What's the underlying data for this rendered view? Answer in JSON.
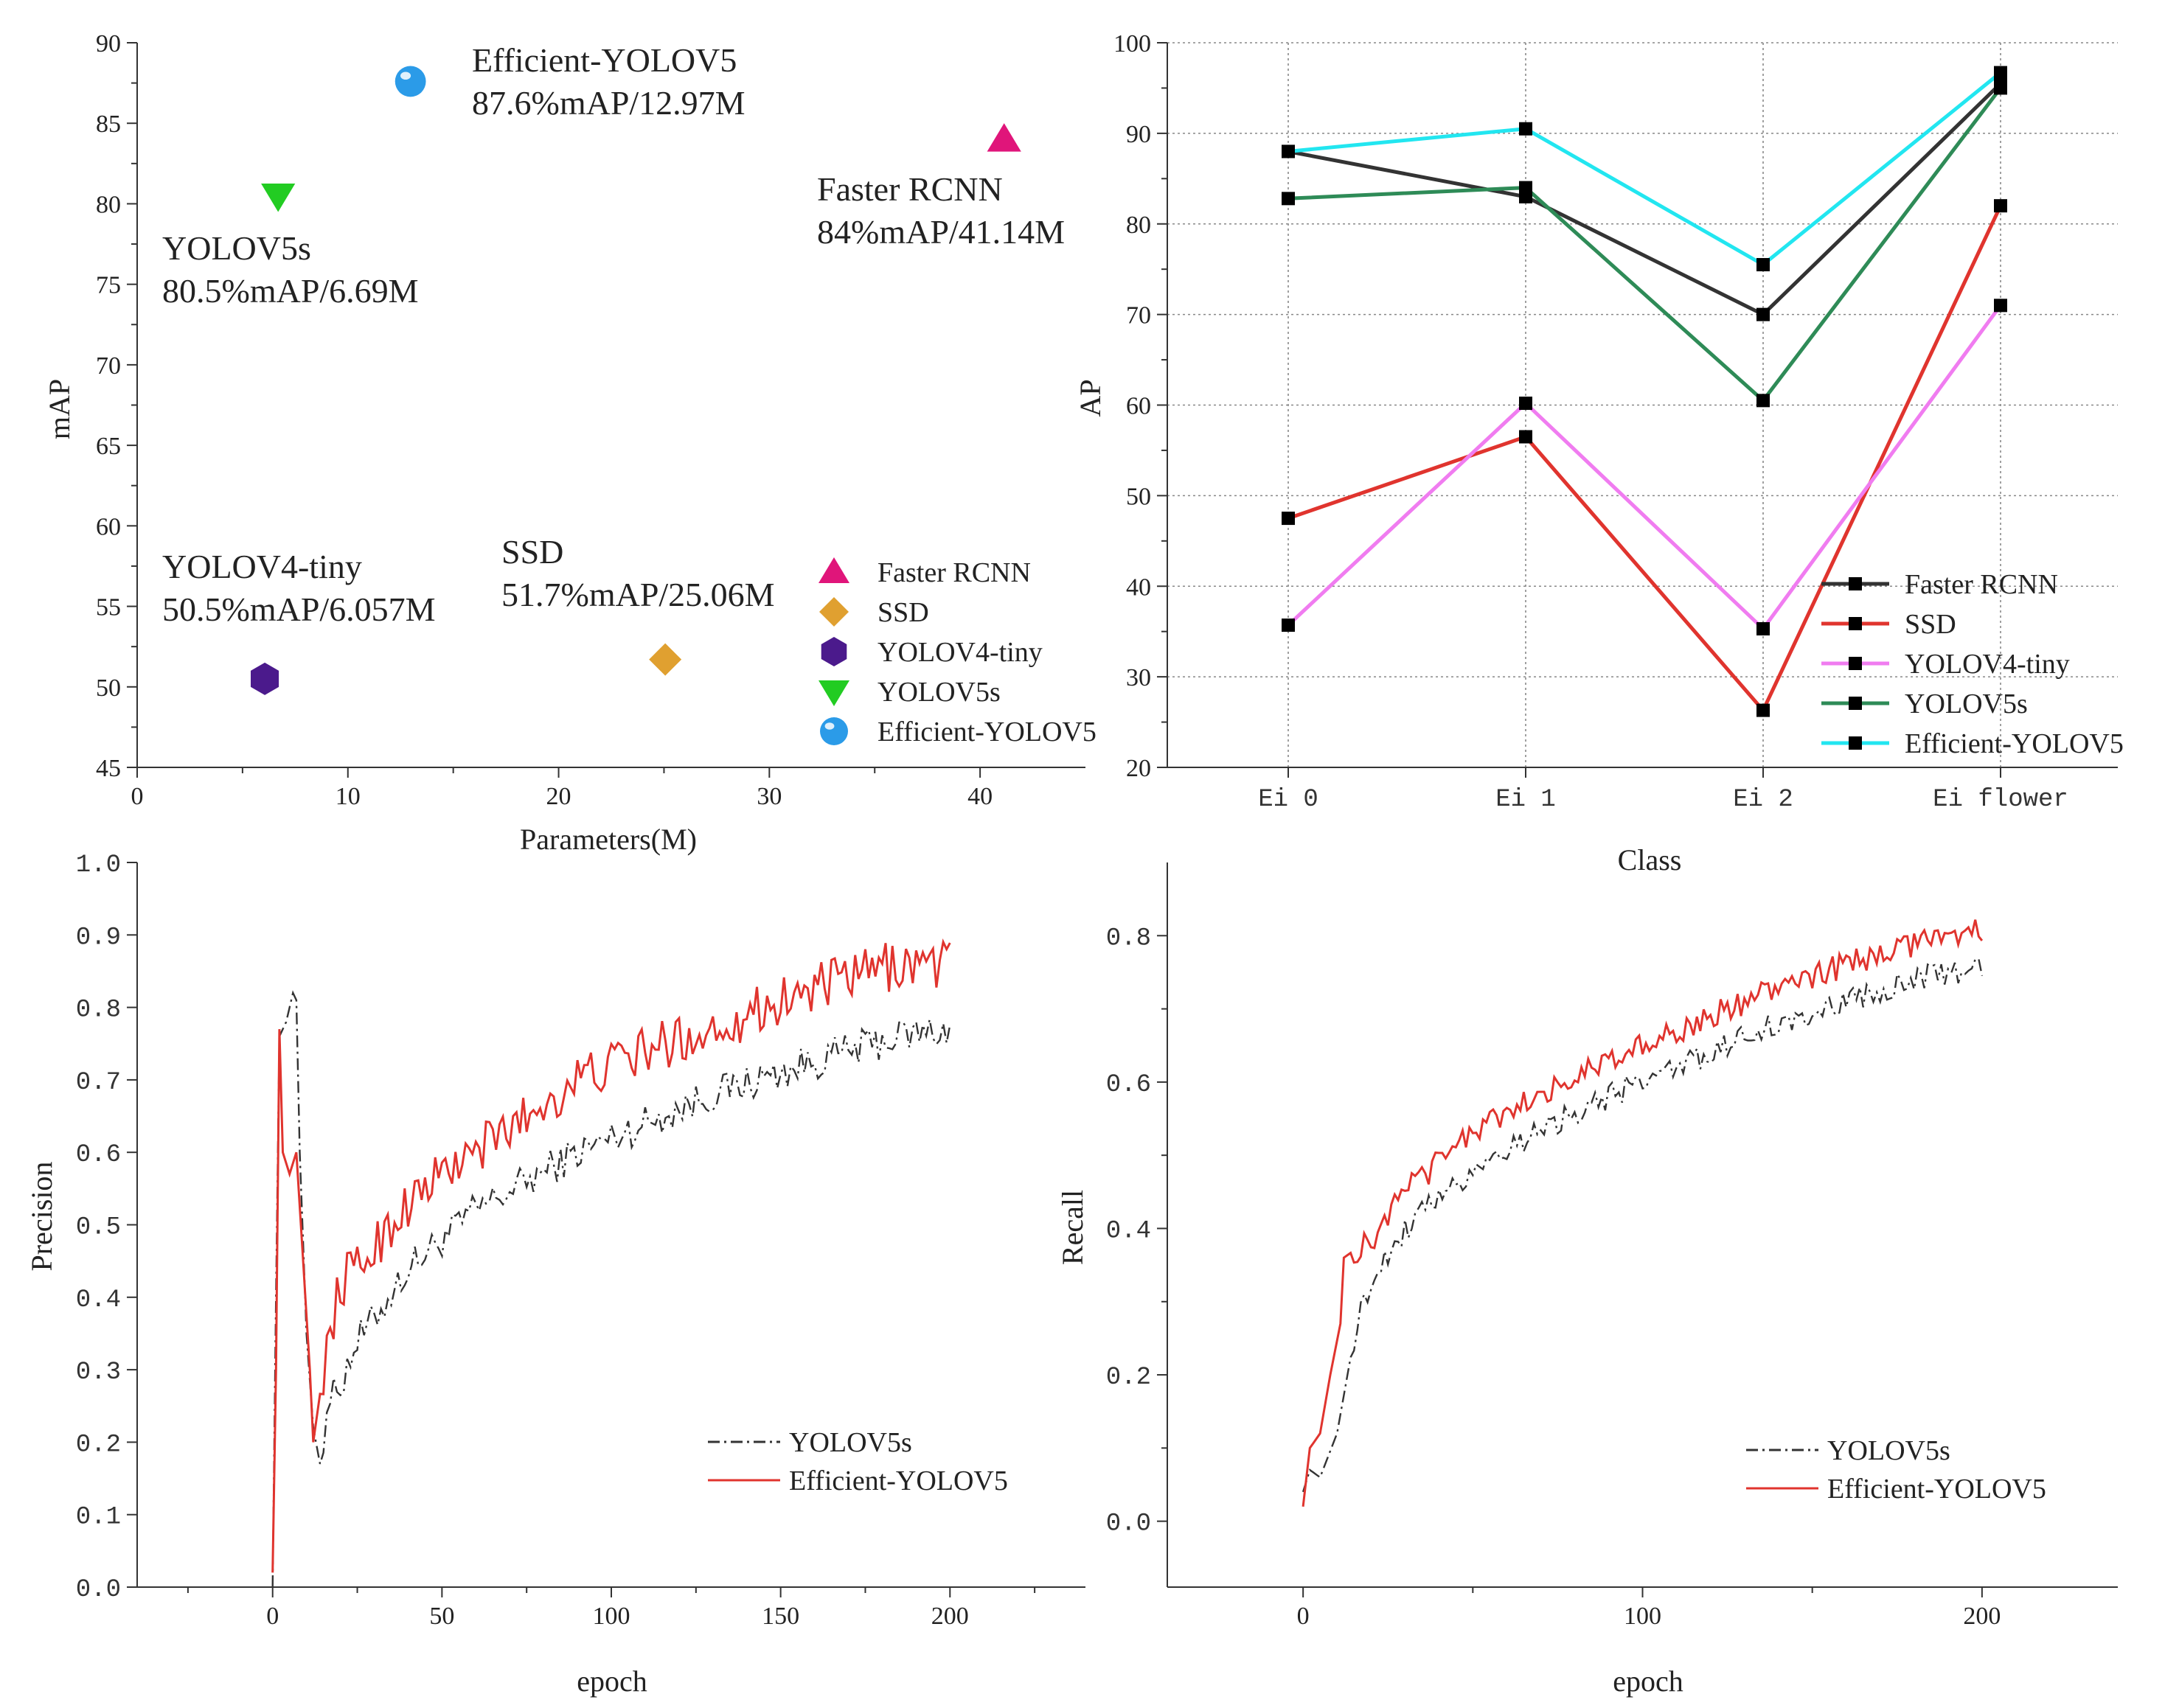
{
  "chart_data": [
    {
      "type": "scatter",
      "xlabel": "Parameters(M)",
      "ylabel": "mAP",
      "xlim": [
        0,
        45
      ],
      "ylim": [
        45,
        90
      ],
      "xticks": [
        0,
        10,
        20,
        30,
        40
      ],
      "yticks": [
        45,
        50,
        55,
        60,
        65,
        70,
        75,
        80,
        85,
        90
      ],
      "legend_position": "bottom-right",
      "points": [
        {
          "name": "Faster RCNN",
          "x": 41.14,
          "y": 84,
          "marker": "triangle-up",
          "color": "#e0157a",
          "line1": "Faster RCNN",
          "line2": "84%mAP/41.14M"
        },
        {
          "name": "SSD",
          "x": 25.06,
          "y": 51.7,
          "marker": "diamond",
          "color": "#e0a030",
          "line1": "SSD",
          "line2": "51.7%mAP/25.06M"
        },
        {
          "name": "YOLOV4-tiny",
          "x": 6.057,
          "y": 50.5,
          "marker": "hexagon",
          "color": "#4b1a8c",
          "line1": "YOLOV4-tiny",
          "line2": "50.5%mAP/6.057M"
        },
        {
          "name": "YOLOV5s",
          "x": 6.69,
          "y": 80.5,
          "marker": "triangle-down",
          "color": "#22cc22",
          "line1": "YOLOV5s",
          "line2": "80.5%mAP/6.69M"
        },
        {
          "name": "Efficient-YOLOV5",
          "x": 12.97,
          "y": 87.6,
          "marker": "sphere",
          "color": "#2b9be8",
          "line1": "Efficient-YOLOV5",
          "line2": "87.6%mAP/12.97M"
        }
      ]
    },
    {
      "type": "line",
      "xlabel": "Class",
      "ylabel": "AP",
      "categories": [
        "Ei 0",
        "Ei 1",
        "Ei 2",
        "Ei flower"
      ],
      "ylim": [
        20,
        100
      ],
      "yticks": [
        20,
        30,
        40,
        50,
        60,
        70,
        80,
        90,
        100
      ],
      "grid": true,
      "legend_position": "bottom-right",
      "series": [
        {
          "name": "Faster RCNN",
          "color": "#333333",
          "values": [
            88,
            83,
            70,
            95.5
          ]
        },
        {
          "name": "SSD",
          "color": "#e0342e",
          "values": [
            47.5,
            56.5,
            26.3,
            82
          ]
        },
        {
          "name": "YOLOV4-tiny",
          "color": "#f07cf0",
          "values": [
            35.7,
            60.2,
            35.3,
            71
          ]
        },
        {
          "name": "YOLOV5s",
          "color": "#2e8b57",
          "values": [
            82.8,
            84,
            60.5,
            95
          ]
        },
        {
          "name": "Efficient-YOLOV5",
          "color": "#22e6f0",
          "values": [
            88,
            90.5,
            75.5,
            96.7
          ]
        }
      ]
    },
    {
      "type": "line",
      "xlabel": "epoch",
      "ylabel": "Precision",
      "xlim": [
        -40,
        240
      ],
      "ylim": [
        0,
        1
      ],
      "xticks": [
        0,
        50,
        100,
        150,
        200
      ],
      "yticks": [
        "0.0",
        "0.1",
        "0.2",
        "0.3",
        "0.4",
        "0.5",
        "0.6",
        "0.7",
        "0.8",
        "0.9",
        "1.0"
      ],
      "legend_position": "bottom-right",
      "series": [
        {
          "name": "YOLOV5s",
          "color": "#333333",
          "dash": "dash-dot",
          "anchors": [
            [
              0,
              0.0
            ],
            [
              1,
              0.4
            ],
            [
              2,
              0.76
            ],
            [
              4,
              0.78
            ],
            [
              6,
              0.82
            ],
            [
              7,
              0.81
            ],
            [
              8,
              0.6
            ],
            [
              10,
              0.35
            ],
            [
              12,
              0.22
            ],
            [
              14,
              0.17
            ],
            [
              16,
              0.25
            ],
            [
              20,
              0.28
            ],
            [
              25,
              0.34
            ],
            [
              30,
              0.37
            ],
            [
              40,
              0.44
            ],
            [
              50,
              0.48
            ],
            [
              60,
              0.52
            ],
            [
              75,
              0.56
            ],
            [
              90,
              0.6
            ],
            [
              110,
              0.64
            ],
            [
              130,
              0.68
            ],
            [
              150,
              0.71
            ],
            [
              170,
              0.74
            ],
            [
              185,
              0.76
            ],
            [
              200,
              0.77
            ]
          ],
          "noise": 0.025
        },
        {
          "name": "Efficient-YOLOV5",
          "color": "#e0342e",
          "dash": "solid",
          "anchors": [
            [
              0,
              0.02
            ],
            [
              1,
              0.3
            ],
            [
              2,
              0.77
            ],
            [
              3,
              0.6
            ],
            [
              5,
              0.57
            ],
            [
              7,
              0.6
            ],
            [
              9,
              0.45
            ],
            [
              11,
              0.3
            ],
            [
              12,
              0.2
            ],
            [
              15,
              0.3
            ],
            [
              20,
              0.42
            ],
            [
              25,
              0.44
            ],
            [
              30,
              0.47
            ],
            [
              40,
              0.53
            ],
            [
              50,
              0.57
            ],
            [
              60,
              0.6
            ],
            [
              75,
              0.65
            ],
            [
              90,
              0.7
            ],
            [
              110,
              0.74
            ],
            [
              130,
              0.77
            ],
            [
              150,
              0.81
            ],
            [
              170,
              0.84
            ],
            [
              185,
              0.86
            ],
            [
              200,
              0.86
            ]
          ],
          "noise": 0.035
        }
      ]
    },
    {
      "type": "line",
      "xlabel": "epoch",
      "ylabel": "Recall",
      "xlim": [
        -40,
        240
      ],
      "ylim": [
        -0.09,
        0.9
      ],
      "xticks": [
        0,
        100,
        200
      ],
      "yticks": [
        "0.0",
        "0.2",
        "0.4",
        "0.6",
        "0.8"
      ],
      "legend_position": "bottom-right",
      "series": [
        {
          "name": "YOLOV5s",
          "color": "#333333",
          "dash": "dash-dot",
          "anchors": [
            [
              0,
              0.04
            ],
            [
              2,
              0.07
            ],
            [
              5,
              0.06
            ],
            [
              10,
              0.12
            ],
            [
              15,
              0.25
            ],
            [
              20,
              0.33
            ],
            [
              30,
              0.4
            ],
            [
              40,
              0.44
            ],
            [
              50,
              0.48
            ],
            [
              60,
              0.51
            ],
            [
              80,
              0.56
            ],
            [
              100,
              0.6
            ],
            [
              120,
              0.64
            ],
            [
              140,
              0.68
            ],
            [
              160,
              0.71
            ],
            [
              180,
              0.74
            ],
            [
              200,
              0.76
            ]
          ],
          "noise": 0.018
        },
        {
          "name": "Efficient-YOLOV5",
          "color": "#e0342e",
          "dash": "solid",
          "anchors": [
            [
              0,
              0.02
            ],
            [
              2,
              0.1
            ],
            [
              5,
              0.12
            ],
            [
              8,
              0.2
            ],
            [
              11,
              0.27
            ],
            [
              12,
              0.36
            ],
            [
              15,
              0.37
            ],
            [
              20,
              0.38
            ],
            [
              30,
              0.45
            ],
            [
              40,
              0.49
            ],
            [
              50,
              0.53
            ],
            [
              60,
              0.56
            ],
            [
              80,
              0.61
            ],
            [
              100,
              0.65
            ],
            [
              120,
              0.69
            ],
            [
              140,
              0.73
            ],
            [
              160,
              0.76
            ],
            [
              180,
              0.79
            ],
            [
              200,
              0.81
            ]
          ],
          "noise": 0.018
        }
      ]
    }
  ]
}
